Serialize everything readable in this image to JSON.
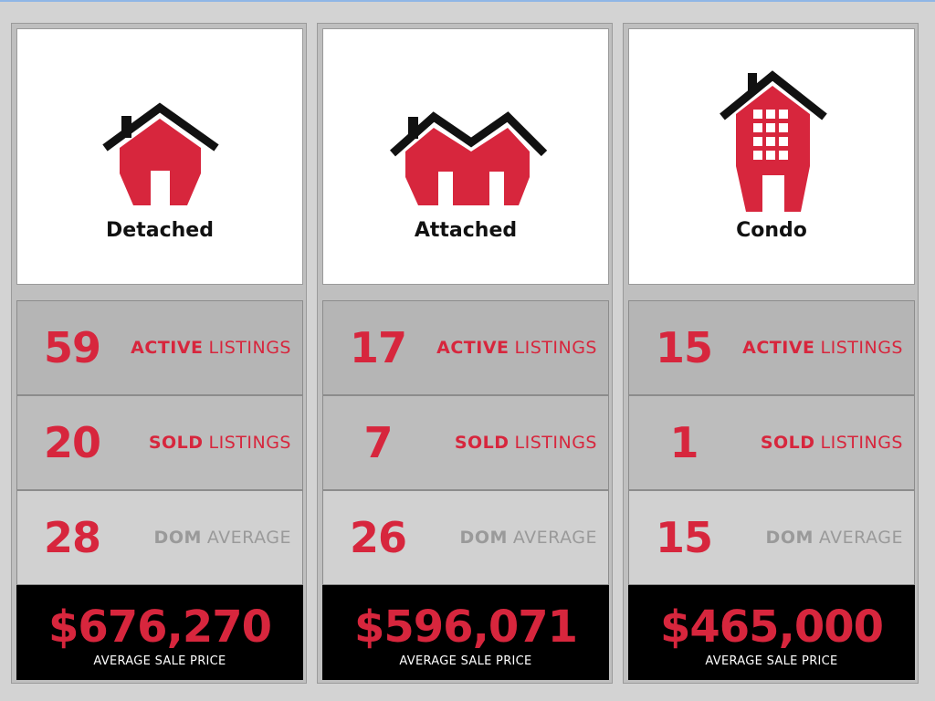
{
  "colors": {
    "accent": "#d7263d",
    "muted": "#9a9a9a",
    "panel": "#bfbfbf"
  },
  "columns": [
    {
      "category": "Detached",
      "icon": "detached-house-icon",
      "active": {
        "value": "59",
        "bold": "ACTIVE",
        "rest": "LISTINGS"
      },
      "sold": {
        "value": "20",
        "bold": "SOLD",
        "rest": "LISTINGS"
      },
      "dom": {
        "value": "28",
        "bold": "DOM",
        "rest": "AVERAGE"
      },
      "price": {
        "value": "$676,270",
        "label": "AVERAGE SALE PRICE"
      }
    },
    {
      "category": "Attached",
      "icon": "attached-house-icon",
      "active": {
        "value": "17",
        "bold": "ACTIVE",
        "rest": "LISTINGS"
      },
      "sold": {
        "value": "7",
        "bold": "SOLD",
        "rest": "LISTINGS"
      },
      "dom": {
        "value": "26",
        "bold": "DOM",
        "rest": "AVERAGE"
      },
      "price": {
        "value": "$596,071",
        "label": "AVERAGE SALE PRICE"
      }
    },
    {
      "category": "Condo",
      "icon": "condo-building-icon",
      "active": {
        "value": "15",
        "bold": "ACTIVE",
        "rest": "LISTINGS"
      },
      "sold": {
        "value": "1",
        "bold": "SOLD",
        "rest": "LISTINGS"
      },
      "dom": {
        "value": "15",
        "bold": "DOM",
        "rest": "AVERAGE"
      },
      "price": {
        "value": "$465,000",
        "label": "AVERAGE SALE PRICE"
      }
    }
  ]
}
